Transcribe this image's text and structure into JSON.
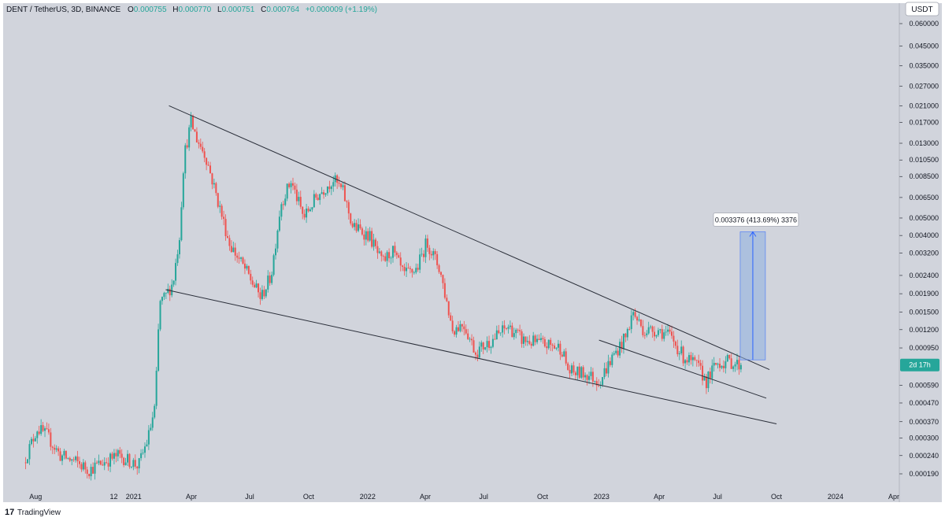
{
  "header": {
    "symbol": "DENT / TetherUS, 3D, BINANCE",
    "open_label": "O",
    "open": "0.000755",
    "high_label": "H",
    "high": "0.000770",
    "low_label": "L",
    "low": "0.000751",
    "close_label": "C",
    "close": "0.000764",
    "change": "+0.000009 (+1.19%)"
  },
  "currency_label": "USDT",
  "countdown_label": "2d 17h",
  "watermark": "TradingView",
  "measure_label": "0.003376 (413.69%) 3376",
  "colors": {
    "background": "#d1d4dc",
    "up": "#26a69a",
    "down": "#ef5350",
    "trendline": "#2a2e39",
    "measure_fill": "#8eaee0",
    "measure_line": "#2962ff",
    "countdown_bg": "#26a69a"
  },
  "chart_data": {
    "type": "candlestick",
    "series_name": "DENT/USDT 3D",
    "y_scale": "log",
    "y_ticks": [
      "0.060000",
      "0.045000",
      "0.035000",
      "0.027000",
      "0.021000",
      "0.017000",
      "0.013000",
      "0.010500",
      "0.008500",
      "0.006500",
      "0.005000",
      "0.004000",
      "0.003200",
      "0.002400",
      "0.001900",
      "0.001500",
      "0.001200",
      "0.000950",
      "0.000590",
      "0.000470",
      "0.000370",
      "0.000300",
      "0.000240",
      "0.000190"
    ],
    "y_tick_values": [
      0.06,
      0.045,
      0.035,
      0.027,
      0.021,
      0.017,
      0.013,
      0.0105,
      0.0085,
      0.0065,
      0.005,
      0.004,
      0.0032,
      0.0024,
      0.0019,
      0.0015,
      0.0012,
      0.00095,
      0.00059,
      0.00047,
      0.00037,
      0.0003,
      0.00024,
      0.00019
    ],
    "x_ticks": [
      {
        "label": "Aug",
        "date": "2020-08-01"
      },
      {
        "label": "12",
        "date": "2020-12-01"
      },
      {
        "label": "2021",
        "date": "2021-01-01"
      },
      {
        "label": "Apr",
        "date": "2021-04-01"
      },
      {
        "label": "Jul",
        "date": "2021-07-01"
      },
      {
        "label": "Oct",
        "date": "2021-10-01"
      },
      {
        "label": "2022",
        "date": "2022-01-01"
      },
      {
        "label": "Apr",
        "date": "2022-04-01"
      },
      {
        "label": "Jul",
        "date": "2022-07-01"
      },
      {
        "label": "Oct",
        "date": "2022-10-01"
      },
      {
        "label": "2023",
        "date": "2023-01-01"
      },
      {
        "label": "Apr",
        "date": "2023-04-01"
      },
      {
        "label": "Jul",
        "date": "2023-07-01"
      },
      {
        "label": "Oct",
        "date": "2023-10-01"
      },
      {
        "label": "2024",
        "date": "2024-01-01"
      },
      {
        "label": "Apr",
        "date": "2024-04-01"
      }
    ],
    "price_path": [
      [
        "2020-07-15",
        0.00022
      ],
      [
        "2020-08-05",
        0.00034
      ],
      [
        "2020-08-20",
        0.00031
      ],
      [
        "2020-09-10",
        0.00024
      ],
      [
        "2020-10-05",
        0.00022
      ],
      [
        "2020-10-25",
        0.0002
      ],
      [
        "2020-11-15",
        0.00022
      ],
      [
        "2020-12-10",
        0.00024
      ],
      [
        "2020-12-31",
        0.00022
      ],
      [
        "2021-01-10",
        0.00021
      ],
      [
        "2021-01-25",
        0.0003
      ],
      [
        "2021-02-05",
        0.00045
      ],
      [
        "2021-02-12",
        0.0017
      ],
      [
        "2021-02-20",
        0.0018
      ],
      [
        "2021-03-05",
        0.0022
      ],
      [
        "2021-03-15",
        0.004
      ],
      [
        "2021-03-22",
        0.011
      ],
      [
        "2021-04-02",
        0.017
      ],
      [
        "2021-04-10",
        0.014
      ],
      [
        "2021-04-25",
        0.011
      ],
      [
        "2021-05-15",
        0.006
      ],
      [
        "2021-06-01",
        0.0036
      ],
      [
        "2021-06-25",
        0.0026
      ],
      [
        "2021-07-20",
        0.0018
      ],
      [
        "2021-08-05",
        0.0024
      ],
      [
        "2021-08-20",
        0.006
      ],
      [
        "2021-09-05",
        0.008
      ],
      [
        "2021-09-25",
        0.005
      ],
      [
        "2021-10-15",
        0.0066
      ],
      [
        "2021-11-10",
        0.0082
      ],
      [
        "2021-11-25",
        0.007
      ],
      [
        "2021-12-10",
        0.0045
      ],
      [
        "2022-01-05",
        0.004
      ],
      [
        "2022-01-25",
        0.0028
      ],
      [
        "2022-02-10",
        0.0033
      ],
      [
        "2022-02-28",
        0.0024
      ],
      [
        "2022-03-20",
        0.0026
      ],
      [
        "2022-04-05",
        0.0037
      ],
      [
        "2022-04-25",
        0.0026
      ],
      [
        "2022-05-15",
        0.0012
      ],
      [
        "2022-06-01",
        0.0013
      ],
      [
        "2022-06-20",
        0.0009
      ],
      [
        "2022-07-15",
        0.00105
      ],
      [
        "2022-08-10",
        0.00125
      ],
      [
        "2022-09-01",
        0.00105
      ],
      [
        "2022-10-01",
        0.001
      ],
      [
        "2022-11-01",
        0.00095
      ],
      [
        "2022-11-12",
        0.0007
      ],
      [
        "2022-12-10",
        0.00068
      ],
      [
        "2022-12-30",
        0.00062
      ],
      [
        "2023-01-20",
        0.00085
      ],
      [
        "2023-02-10",
        0.0011
      ],
      [
        "2023-02-20",
        0.0015
      ],
      [
        "2023-03-10",
        0.00118
      ],
      [
        "2023-04-01",
        0.0012
      ],
      [
        "2023-04-20",
        0.0011
      ],
      [
        "2023-05-10",
        0.00085
      ],
      [
        "2023-06-01",
        0.00075
      ],
      [
        "2023-06-15",
        0.00062
      ],
      [
        "2023-07-01",
        0.00078
      ],
      [
        "2023-07-20",
        0.0008
      ],
      [
        "2023-08-05",
        0.000764
      ]
    ],
    "upper_trendline": [
      [
        "2021-02-25",
        0.021
      ],
      [
        "2023-09-20",
        0.00072
      ]
    ],
    "lower_trendline": [
      [
        "2021-02-20",
        0.002
      ],
      [
        "2023-10-01",
        0.00036
      ]
    ],
    "inner_lower_trendline": [
      [
        "2022-12-28",
        0.00105
      ],
      [
        "2023-09-15",
        0.0005
      ]
    ],
    "measure": {
      "date": "2023-08-25",
      "from": 0.000816,
      "to": 0.004192,
      "change": 0.003376,
      "percent": 413.69,
      "bars": 3376
    },
    "current_price": 0.000764
  }
}
